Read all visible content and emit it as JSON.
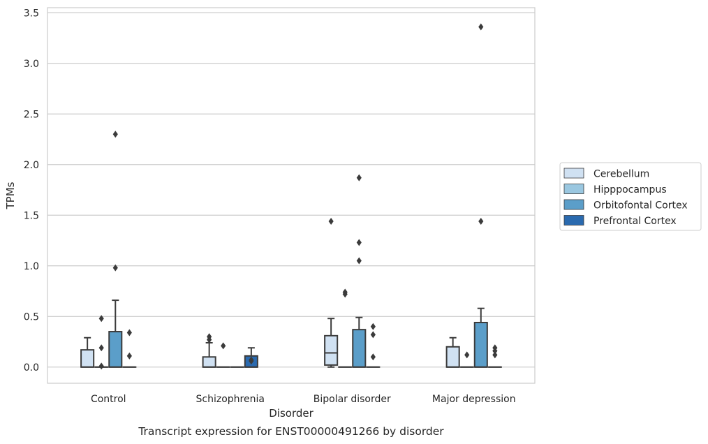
{
  "chart_data": {
    "type": "box",
    "title": "",
    "caption": "Transcript expression for ENST00000491266 by disorder",
    "xlabel": "Disorder",
    "ylabel": "TPMs",
    "ylim": [
      -0.16,
      3.55
    ],
    "yticks": [
      "0.0",
      "0.5",
      "1.0",
      "1.5",
      "2.0",
      "2.5",
      "3.0",
      "3.5"
    ],
    "ytick_values": [
      0,
      0.5,
      1.0,
      1.5,
      2.0,
      2.5,
      3.0,
      3.5
    ],
    "grid": "horizontal",
    "legend_position": "right",
    "categories": [
      "Control",
      "Schizophrenia",
      "Bipolar disorder",
      "Major depression"
    ],
    "series": [
      {
        "name": "Cerebellum",
        "color": "#d0e1f2",
        "boxes": [
          {
            "q1": 0,
            "median": 0,
            "q3": 0.17,
            "whisker_low": 0,
            "whisker_high": 0.29,
            "outliers": []
          },
          {
            "q1": 0,
            "median": 0,
            "q3": 0.1,
            "whisker_low": 0,
            "whisker_high": 0.24,
            "outliers": [
              0.27,
              0.3
            ]
          },
          {
            "q1": 0.02,
            "median": 0.14,
            "q3": 0.31,
            "whisker_low": 0,
            "whisker_high": 0.48,
            "outliers": [
              1.44
            ]
          },
          {
            "q1": 0,
            "median": 0,
            "q3": 0.2,
            "whisker_low": 0,
            "whisker_high": 0.29,
            "outliers": []
          }
        ]
      },
      {
        "name": "Hipppocampus",
        "color": "#9ac7e0",
        "boxes": [
          {
            "q1": 0,
            "median": 0,
            "q3": 0,
            "whisker_low": 0,
            "whisker_high": 0,
            "outliers": [
              0.01,
              0.19,
              0.48
            ]
          },
          {
            "q1": 0,
            "median": 0,
            "q3": 0,
            "whisker_low": 0,
            "whisker_high": 0,
            "outliers": [
              0.21
            ]
          },
          {
            "q1": 0,
            "median": 0,
            "q3": 0,
            "whisker_low": 0,
            "whisker_high": 0,
            "outliers": [
              0.72,
              0.74
            ]
          },
          {
            "q1": 0,
            "median": 0,
            "q3": 0,
            "whisker_low": 0,
            "whisker_high": 0,
            "outliers": [
              0.12
            ]
          }
        ]
      },
      {
        "name": "Orbitofontal Cortex",
        "color": "#5b9ec9",
        "boxes": [
          {
            "q1": 0,
            "median": 0,
            "q3": 0.35,
            "whisker_low": 0,
            "whisker_high": 0.66,
            "outliers": [
              0.98,
              2.3
            ]
          },
          {
            "q1": 0,
            "median": 0,
            "q3": 0,
            "whisker_low": 0,
            "whisker_high": 0,
            "outliers": []
          },
          {
            "q1": 0,
            "median": 0,
            "q3": 0.37,
            "whisker_low": 0,
            "whisker_high": 0.49,
            "outliers": [
              1.05,
              1.23,
              1.87
            ]
          },
          {
            "q1": 0,
            "median": 0,
            "q3": 0.44,
            "whisker_low": 0,
            "whisker_high": 0.58,
            "outliers": [
              1.44,
              3.36
            ]
          }
        ]
      },
      {
        "name": "Prefrontal Cortex",
        "color": "#2a6aaf",
        "boxes": [
          {
            "q1": 0,
            "median": 0,
            "q3": 0,
            "whisker_low": 0,
            "whisker_high": 0,
            "outliers": [
              0.11,
              0.34
            ]
          },
          {
            "q1": 0,
            "median": 0,
            "q3": 0.11,
            "whisker_low": 0,
            "whisker_high": 0.19,
            "outliers": [
              0.06,
              0.07
            ]
          },
          {
            "q1": 0,
            "median": 0,
            "q3": 0,
            "whisker_low": 0,
            "whisker_high": 0,
            "outliers": [
              0.1,
              0.32,
              0.4
            ]
          },
          {
            "q1": 0,
            "median": 0,
            "q3": 0,
            "whisker_low": 0,
            "whisker_high": 0,
            "outliers": [
              0.12,
              0.16,
              0.19
            ]
          }
        ]
      }
    ]
  }
}
